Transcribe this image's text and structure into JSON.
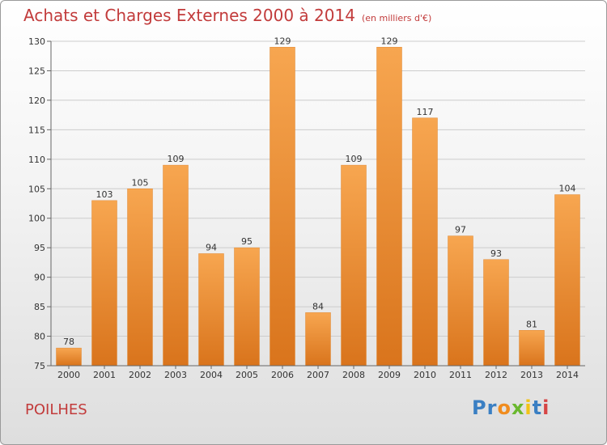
{
  "header": {
    "title": "Achats et Charges Externes 2000 à 2014",
    "unit": "(en milliers d'€)"
  },
  "footer": {
    "commune": "POILHES",
    "brand_letters": [
      "P",
      "r",
      "o",
      "x",
      "i",
      "t",
      "i"
    ]
  },
  "colors": {
    "title": "#c23b3b",
    "bar_top": "#f7a650",
    "bar_bottom": "#d9741c",
    "grid": "#cccccc",
    "brand": [
      "#3a7fc3",
      "#3a7fc3",
      "#f08c1e",
      "#6ab82e",
      "#f2c318",
      "#3a7fc3",
      "#d64545"
    ]
  },
  "chart_data": {
    "type": "bar",
    "title": "Achats et Charges Externes 2000 à 2014",
    "subtitle": "(en milliers d'€)",
    "categories": [
      "2000",
      "2001",
      "2002",
      "2003",
      "2004",
      "2005",
      "2006",
      "2007",
      "2008",
      "2009",
      "2010",
      "2011",
      "2012",
      "2013",
      "2014"
    ],
    "values": [
      78,
      103,
      105,
      109,
      94,
      95,
      129,
      84,
      109,
      129,
      117,
      97,
      93,
      81,
      104
    ],
    "ylim": [
      75,
      130
    ],
    "yticks": [
      75,
      80,
      85,
      90,
      95,
      100,
      105,
      110,
      115,
      120,
      125,
      130
    ],
    "grid": "horizontal",
    "xlabel": "",
    "ylabel": ""
  }
}
